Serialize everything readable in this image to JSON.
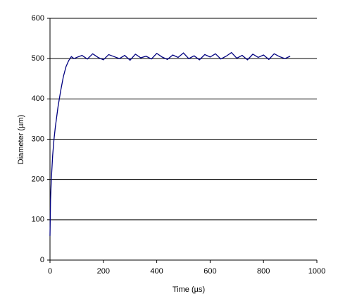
{
  "chart_data": {
    "type": "line",
    "x_label": "Time (µs)",
    "y_label": "Diameter (µm)",
    "x": [
      0,
      2,
      5,
      10,
      15,
      20,
      30,
      40,
      50,
      60,
      70,
      80,
      90,
      100,
      120,
      140,
      160,
      180,
      200,
      220,
      240,
      260,
      280,
      300,
      320,
      340,
      360,
      380,
      400,
      420,
      440,
      460,
      480,
      500,
      520,
      540,
      560,
      580,
      600,
      620,
      640,
      660,
      680,
      700,
      720,
      740,
      760,
      780,
      800,
      820,
      840,
      860,
      880,
      900
    ],
    "series": [
      {
        "color": "#000080",
        "values": [
          60,
          150,
          200,
          260,
          300,
          330,
          380,
          420,
          455,
          480,
          495,
          505,
          500,
          503,
          508,
          499,
          512,
          503,
          497,
          510,
          505,
          500,
          508,
          496,
          511,
          502,
          506,
          499,
          513,
          504,
          498,
          509,
          503,
          514,
          500,
          507,
          497,
          510,
          504,
          512,
          499,
          506,
          515,
          501,
          508,
          497,
          511,
          503,
          509,
          498,
          512,
          505,
          500,
          506
        ]
      }
    ],
    "xlim": [
      0,
      1000
    ],
    "xticks": [
      0,
      200,
      400,
      600,
      800,
      1000
    ],
    "ylim": [
      0,
      600
    ],
    "yticks": [
      0,
      100,
      200,
      300,
      400,
      500,
      600
    ],
    "grid": true
  }
}
